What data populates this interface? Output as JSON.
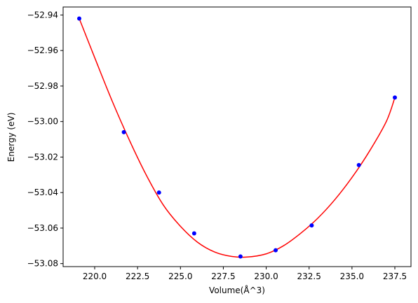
{
  "colors": {
    "fit_line": "#ff0000",
    "points": "#0000ff",
    "axes": "#000000",
    "background": "#ffffff"
  },
  "chart_data": {
    "type": "scatter",
    "title": "",
    "xlabel": "Volume(Å^3)",
    "ylabel": "Energy (eV)",
    "xlim": [
      218.16,
      238.44
    ],
    "ylim": [
      -53.0817,
      -52.9355
    ],
    "grid": false,
    "xticks": [
      220.0,
      222.5,
      225.0,
      227.5,
      230.0,
      232.5,
      235.0,
      237.5
    ],
    "xtick_labels": [
      "220.0",
      "222.5",
      "225.0",
      "227.5",
      "230.0",
      "232.5",
      "235.0",
      "237.5"
    ],
    "yticks": [
      -52.94,
      -52.96,
      -52.98,
      -53.0,
      -53.02,
      -53.04,
      -53.06,
      -53.08
    ],
    "ytick_labels": [
      "−52.94",
      "−52.96",
      "−52.98",
      "−53.00",
      "−53.02",
      "−53.04",
      "−53.06",
      "−53.08"
    ],
    "series": [
      {
        "kind": "points",
        "color": "#0000ff",
        "x": [
          219.1,
          221.7,
          223.75,
          225.8,
          228.5,
          230.55,
          232.65,
          235.4,
          237.5
        ],
        "y": [
          -52.942,
          -53.006,
          -53.04,
          -53.063,
          -53.076,
          -53.0725,
          -53.0585,
          -53.0245,
          -52.9865
        ]
      },
      {
        "kind": "fit-curve",
        "color": "#ff0000",
        "x": [
          219.1,
          220.0,
          221.0,
          222.0,
          223.0,
          224.0,
          225.0,
          226.0,
          227.0,
          228.0,
          228.9,
          230.0,
          231.0,
          232.0,
          233.0,
          234.0,
          235.0,
          236.0,
          237.0,
          237.5
        ],
        "y": [
          -52.942,
          -52.964,
          -52.988,
          -53.01,
          -53.03,
          -53.047,
          -53.059,
          -53.068,
          -53.0735,
          -53.076,
          -53.0763,
          -53.0745,
          -53.07,
          -53.063,
          -53.0545,
          -53.044,
          -53.0315,
          -53.017,
          -53.0,
          -52.9865
        ]
      }
    ]
  }
}
